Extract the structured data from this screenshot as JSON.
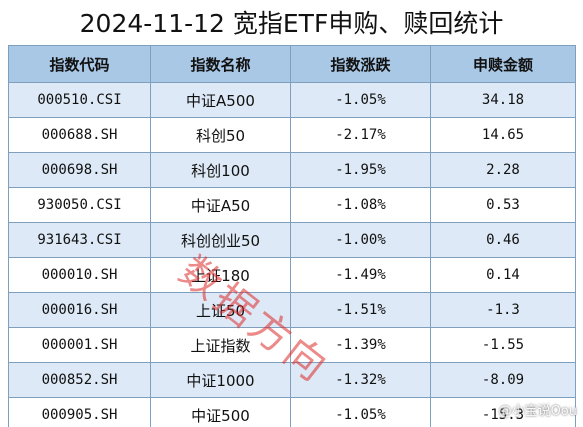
{
  "title": "2024-11-12 宽指ETF申购、赎回统计",
  "table": {
    "headers": [
      "指数代码",
      "指数名称",
      "指数涨跌",
      "申赎金额"
    ],
    "rows": [
      [
        "000510.CSI",
        "中证A500",
        "-1.05%",
        "34.18"
      ],
      [
        "000688.SH",
        "科创50",
        "-2.17%",
        "14.65"
      ],
      [
        "000698.SH",
        "科创100",
        "-1.95%",
        "2.28"
      ],
      [
        "930050.CSI",
        "中证A50",
        "-1.08%",
        "0.53"
      ],
      [
        "931643.CSI",
        "科创创业50",
        "-1.00%",
        "0.46"
      ],
      [
        "000010.SH",
        "上证180",
        "-1.49%",
        "0.14"
      ],
      [
        "000016.SH",
        "上证50",
        "-1.51%",
        "-1.3"
      ],
      [
        "000001.SH",
        "上证指数",
        "-1.39%",
        "-1.55"
      ],
      [
        "000852.SH",
        "中证1000",
        "-1.32%",
        "-8.09"
      ],
      [
        "000905.SH",
        "中证500",
        "-1.05%",
        "-15.3"
      ]
    ]
  },
  "watermark": "数据方向",
  "credit": "@小宝说Oou"
}
